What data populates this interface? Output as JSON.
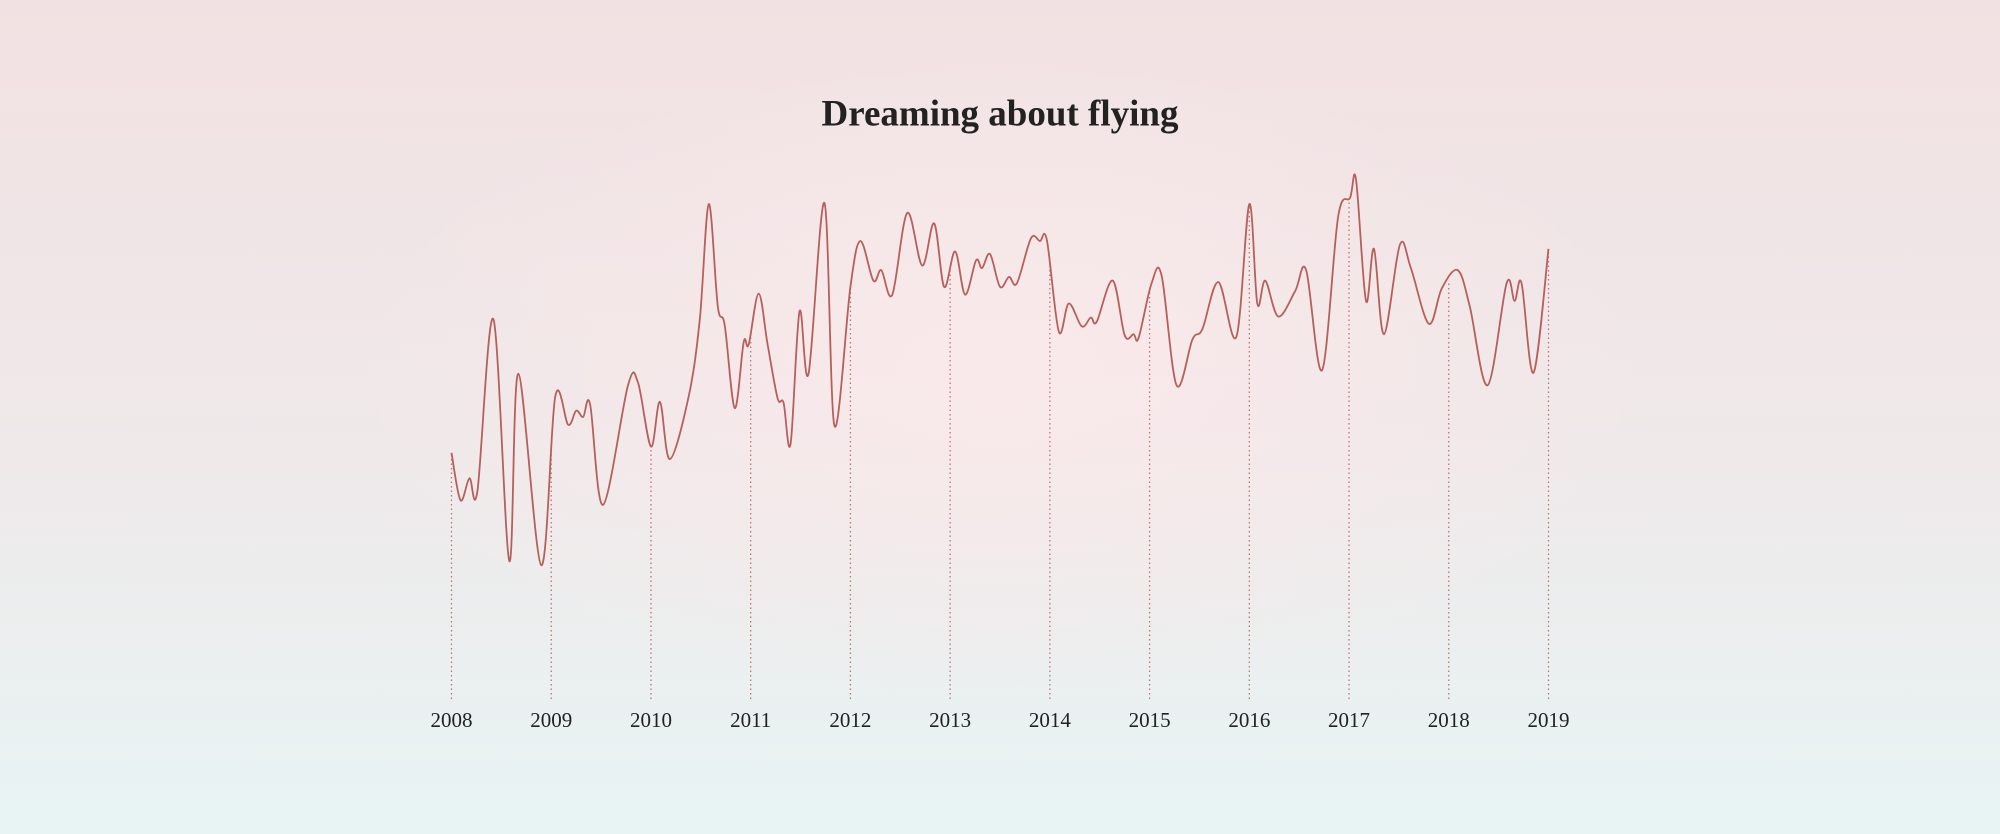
{
  "chart_data": {
    "type": "line",
    "title": "Dreaming about flying",
    "x": [
      2008.0,
      2008.09,
      2008.18,
      2008.26,
      2008.42,
      2008.58,
      2008.67,
      2008.9,
      2009.04,
      2009.17,
      2009.25,
      2009.32,
      2009.39,
      2009.52,
      2009.77,
      2009.87,
      2010.0,
      2010.09,
      2010.19,
      2010.38,
      2010.49,
      2010.58,
      2010.67,
      2010.74,
      2010.84,
      2010.93,
      2010.98,
      2011.08,
      2011.17,
      2011.27,
      2011.33,
      2011.4,
      2011.49,
      2011.58,
      2011.74,
      2011.84,
      2012.0,
      2012.1,
      2012.23,
      2012.31,
      2012.42,
      2012.57,
      2012.72,
      2012.84,
      2012.94,
      2013.05,
      2013.15,
      2013.26,
      2013.32,
      2013.4,
      2013.5,
      2013.59,
      2013.67,
      2013.81,
      2013.9,
      2013.97,
      2014.09,
      2014.19,
      2014.32,
      2014.41,
      2014.47,
      2014.63,
      2014.75,
      2014.84,
      2014.89,
      2015.02,
      2015.12,
      2015.27,
      2015.43,
      2015.53,
      2015.69,
      2015.87,
      2016.0,
      2016.08,
      2016.16,
      2016.29,
      2016.46,
      2016.57,
      2016.73,
      2016.89,
      2017.01,
      2017.07,
      2017.17,
      2017.25,
      2017.35,
      2017.51,
      2017.62,
      2017.8,
      2017.93,
      2018.09,
      2018.21,
      2018.39,
      2018.58,
      2018.66,
      2018.73,
      2018.85,
      2019.0
    ],
    "series": [
      {
        "name": "Dreaming about flying",
        "color": "#b5605c",
        "values": [
          47.3,
          38.2,
          42.4,
          40.0,
          73.0,
          26.5,
          62.5,
          25.7,
          58.1,
          52.7,
          55.4,
          54.2,
          56.6,
          37.3,
          60.3,
          60.8,
          48.5,
          57.1,
          46.1,
          58.3,
          73.0,
          95.1,
          75.5,
          71.8,
          55.9,
          68.6,
          68.1,
          77.9,
          68.1,
          57.8,
          56.9,
          49.0,
          74.5,
          62.5,
          95.3,
          52.5,
          79.2,
          88.0,
          80.4,
          82.4,
          77.7,
          93.4,
          83.3,
          91.4,
          79.2,
          86.0,
          77.7,
          84.3,
          82.8,
          85.5,
          79.2,
          81.1,
          79.9,
          88.5,
          88.0,
          88.2,
          70.6,
          76.0,
          71.6,
          73.3,
          72.5,
          80.4,
          69.9,
          70.1,
          69.4,
          79.9,
          81.4,
          60.3,
          69.1,
          71.1,
          80.1,
          69.6,
          95.1,
          76.0,
          80.4,
          73.5,
          78.4,
          82.4,
          63.2,
          92.6,
          96.3,
          99.8,
          76.5,
          86.5,
          70.1,
          87.3,
          82.8,
          72.1,
          78.9,
          82.4,
          75.5,
          60.3,
          79.9,
          76.5,
          79.9,
          62.7,
          86.5
        ]
      }
    ],
    "xlim": [
      2008,
      2019
    ],
    "xticks": [
      2008,
      2009,
      2010,
      2011,
      2012,
      2013,
      2014,
      2015,
      2016,
      2017,
      2018,
      2019
    ],
    "ylim": [
      0,
      100
    ]
  }
}
